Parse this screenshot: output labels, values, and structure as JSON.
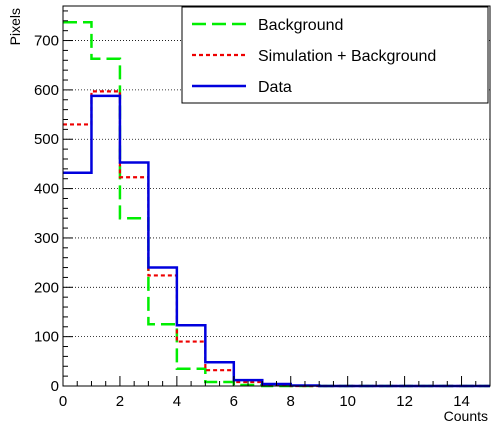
{
  "chart_data": {
    "type": "line",
    "step": true,
    "xlabel": "Counts",
    "ylabel": "Pixels",
    "xlim": [
      0,
      15
    ],
    "ylim": [
      0,
      770
    ],
    "x_ticks": [
      0,
      2,
      4,
      6,
      8,
      10,
      12,
      14
    ],
    "y_ticks": [
      0,
      100,
      200,
      300,
      400,
      500,
      600,
      700
    ],
    "bin_edges": [
      0,
      1,
      2,
      3,
      4,
      5,
      6,
      7,
      8,
      9,
      10,
      11,
      12,
      13,
      14,
      15
    ],
    "grid": "horizontal",
    "legend_position": "top-right",
    "series": [
      {
        "name": "Background",
        "color": "#00ee00",
        "style": "dashed",
        "values": [
          737,
          663,
          340,
          125,
          35,
          8,
          2,
          0,
          0,
          0,
          0,
          0,
          0,
          0,
          0
        ]
      },
      {
        "name": "Simulation + Background",
        "color": "#ee0000",
        "style": "dotted",
        "values": [
          530,
          597,
          423,
          224,
          90,
          32,
          8,
          2,
          0,
          0,
          0,
          0,
          0,
          0,
          0
        ]
      },
      {
        "name": "Data",
        "color": "#0000dd",
        "style": "solid",
        "values": [
          432,
          588,
          453,
          240,
          123,
          48,
          12,
          4,
          1,
          0,
          0,
          0,
          0,
          0,
          0
        ]
      }
    ]
  }
}
